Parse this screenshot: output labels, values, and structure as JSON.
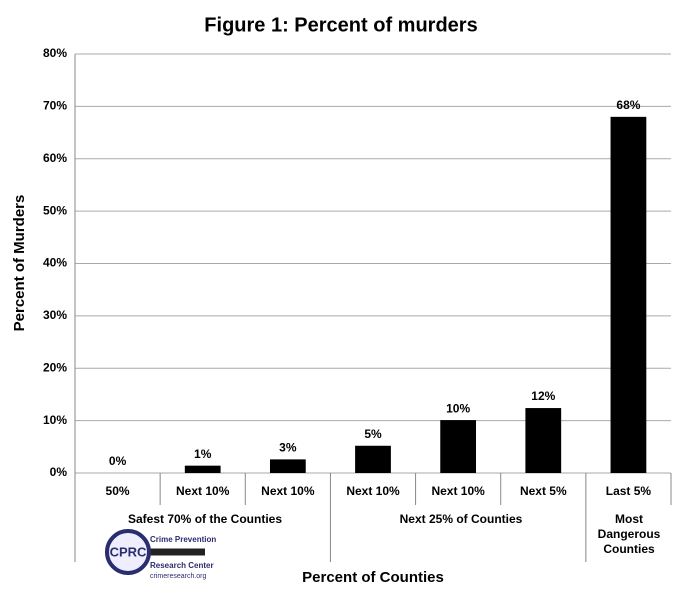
{
  "chart_data": {
    "type": "bar",
    "title": "Figure 1: Percent of murders",
    "ylabel": "Percent of Murders",
    "xlabel": "Percent of Counties",
    "categories": [
      "50%",
      "Next 10%",
      "Next 10%",
      "Next 10%",
      "Next 10%",
      "Next 5%",
      "Last 5%"
    ],
    "values": [
      0,
      1.4,
      2.6,
      5.2,
      10.1,
      12.4,
      68
    ],
    "value_labels": [
      "0%",
      "1%",
      "3%",
      "5%",
      "10%",
      "12%",
      "68%"
    ],
    "groups": [
      "Safest 70% of the Counties",
      "Next 25% of Counties",
      "Most Dangerous Counties"
    ],
    "color": "#000000",
    "ylim": [
      0,
      80
    ],
    "yticks": [
      {
        "value": 0,
        "label": "0%"
      },
      {
        "value": 10,
        "label": "10%"
      },
      {
        "value": 20,
        "label": "20%"
      },
      {
        "value": 30,
        "label": "30%"
      },
      {
        "value": 40,
        "label": "40%"
      },
      {
        "value": 50,
        "label": "50%"
      },
      {
        "value": 60,
        "label": "60%"
      },
      {
        "value": 70,
        "label": "70%"
      },
      {
        "value": 80,
        "label": "80%"
      }
    ],
    "grid": true
  },
  "logo": {
    "initials": "CPRC",
    "line1": "Crime Prevention",
    "line2": "Research Center",
    "url": "crimeresearch.org"
  }
}
